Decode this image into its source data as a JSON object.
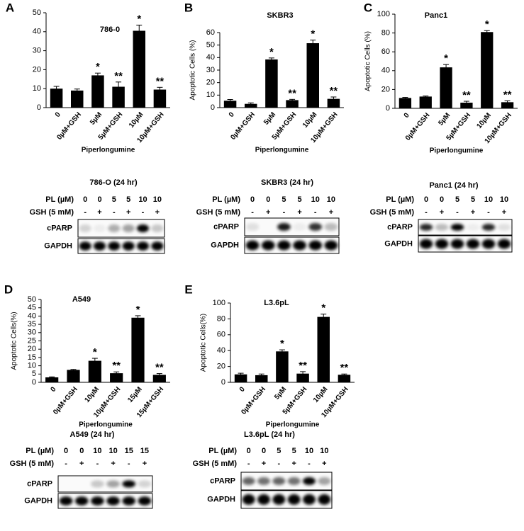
{
  "chart_data": [
    {
      "type": "bar",
      "panel": "A",
      "title": "786-0",
      "xlabel": "Piperlongumine",
      "color": "#000000",
      "categories": [
        "0",
        "0µM+GSH",
        "5µM",
        "5µM+GSH",
        "10µM",
        "10µM+GSH"
      ],
      "values": [
        10,
        9,
        17,
        11,
        40.5,
        9.5
      ],
      "errors": [
        1.2,
        0.8,
        1.2,
        2.5,
        3,
        1.2
      ],
      "annotations": [
        null,
        null,
        "*",
        "**",
        "*",
        "**"
      ],
      "ylim": [
        0,
        50
      ],
      "yticks": [
        0,
        10,
        20,
        30,
        40,
        50
      ]
    },
    {
      "type": "bar",
      "panel": "B",
      "title": "SKBR3",
      "ylabel": "Apoptotic Cells (%)",
      "xlabel": "Piperlongumine",
      "color": "#000000",
      "categories": [
        "0",
        "0µM+GSH",
        "5µM",
        "5µM+GSH",
        "10µM",
        "10µM+GSH"
      ],
      "values": [
        5.5,
        3,
        38.5,
        6,
        51.5,
        7
      ],
      "errors": [
        1,
        0.8,
        1.2,
        0.6,
        2.5,
        1.5
      ],
      "annotations": [
        null,
        null,
        "*",
        "**",
        "*",
        "**"
      ],
      "ylim": [
        0,
        60
      ],
      "yticks": [
        0,
        10,
        20,
        30,
        40,
        50,
        60
      ]
    },
    {
      "type": "bar",
      "panel": "C",
      "title": "Panc1",
      "ylabel": "Apoptotic Cells (%)",
      "xlabel": "Piperlongumine",
      "color": "#000000",
      "categories": [
        "0",
        "0µM+GSH",
        "5µM",
        "5µM+GSH",
        "10µM",
        "10µM+GSH"
      ],
      "values": [
        11,
        12.5,
        43.5,
        6,
        81,
        6.5
      ],
      "errors": [
        0.6,
        0.6,
        3,
        1.5,
        1.5,
        1.5
      ],
      "annotations": [
        null,
        null,
        "*",
        "**",
        "*",
        "**"
      ],
      "ylim": [
        0,
        100
      ],
      "yticks": [
        0,
        20,
        40,
        60,
        80,
        100
      ]
    },
    {
      "type": "bar",
      "panel": "D",
      "title": "A549",
      "ylabel": "Apoptotic Cells(%)",
      "xlabel": "Piperlongumine",
      "color": "#000000",
      "categories": [
        "0",
        "0µM+GSH",
        "10µM",
        "10µM+GSH",
        "15µM",
        "15µM+GSH"
      ],
      "values": [
        3,
        7.5,
        13,
        5.5,
        39,
        4.5
      ],
      "errors": [
        0.3,
        0.3,
        1.5,
        0.8,
        1.2,
        0.8
      ],
      "annotations": [
        null,
        null,
        "*",
        "**",
        "*",
        "**"
      ],
      "ylim": [
        0,
        50
      ],
      "yticks": [
        0,
        5,
        10,
        15,
        20,
        25,
        30,
        35,
        40,
        45,
        50
      ]
    },
    {
      "type": "bar",
      "panel": "E",
      "title": "L3.6pL",
      "ylabel": "Apoptotic Cells(%)",
      "xlabel": "Piperlongumine",
      "color": "#000000",
      "categories": [
        "0",
        "0µM+GSH",
        "5µM",
        "5µM+GSH",
        "10µM",
        "10µM+GSH"
      ],
      "values": [
        10,
        9,
        39,
        11,
        82.5,
        9.5
      ],
      "errors": [
        1.5,
        1.5,
        2,
        2.5,
        3.5,
        1
      ],
      "annotations": [
        null,
        null,
        "*",
        "**",
        "*",
        "**"
      ],
      "ylim": [
        0,
        100
      ],
      "yticks": [
        0,
        20,
        40,
        60,
        80,
        100
      ]
    }
  ],
  "blots": [
    {
      "title": "786-O (24 hr)",
      "pl_label": "PL (µM)",
      "pl": [
        "0",
        "0",
        "5",
        "5",
        "10",
        "10"
      ],
      "gsh_label": "GSH (5 mM)",
      "gsh": [
        "-",
        "+",
        "-",
        "+",
        "-",
        "+"
      ],
      "rows": [
        "cPARP",
        "GAPDH"
      ]
    },
    {
      "title": "SKBR3  (24 hr)",
      "pl_label": "PL (µM)",
      "pl": [
        "0",
        "0",
        "5",
        "5",
        "10",
        "10"
      ],
      "gsh_label": "GSH (5 mM)",
      "gsh": [
        "-",
        "+",
        "-",
        "+",
        "-",
        "+"
      ],
      "rows": [
        "cPARP",
        "GAPDH"
      ]
    },
    {
      "title": "Panc1  (24 hr)",
      "pl_label": "PL (µM)",
      "pl": [
        "0",
        "0",
        "5",
        "5",
        "10",
        "10"
      ],
      "gsh_label": "GSH (5 mM)",
      "gsh": [
        "-",
        "+",
        "-",
        "+",
        "-",
        "+"
      ],
      "rows": [
        "cPARP",
        "GAPDH"
      ]
    },
    {
      "title": "A549  (24 hr)",
      "pl_label": "PL (µM)",
      "pl": [
        "0",
        "0",
        "10",
        "10",
        "15",
        "15"
      ],
      "gsh_label": "GSH (5 mM)",
      "gsh": [
        "-",
        "+",
        "-",
        "+",
        "-",
        "+"
      ],
      "rows": [
        "cPARP",
        "GAPDH"
      ]
    },
    {
      "title": "L3.6pL  (24 hr)",
      "pl_label": "PL (µM)",
      "pl": [
        "0",
        "0",
        "5",
        "5",
        "10",
        "10"
      ],
      "gsh_label": "GSH (5 mM)",
      "gsh": [
        "-",
        "+",
        "-",
        "+",
        "-",
        "+"
      ],
      "rows": [
        "cPARP",
        "GAPDH"
      ]
    }
  ]
}
